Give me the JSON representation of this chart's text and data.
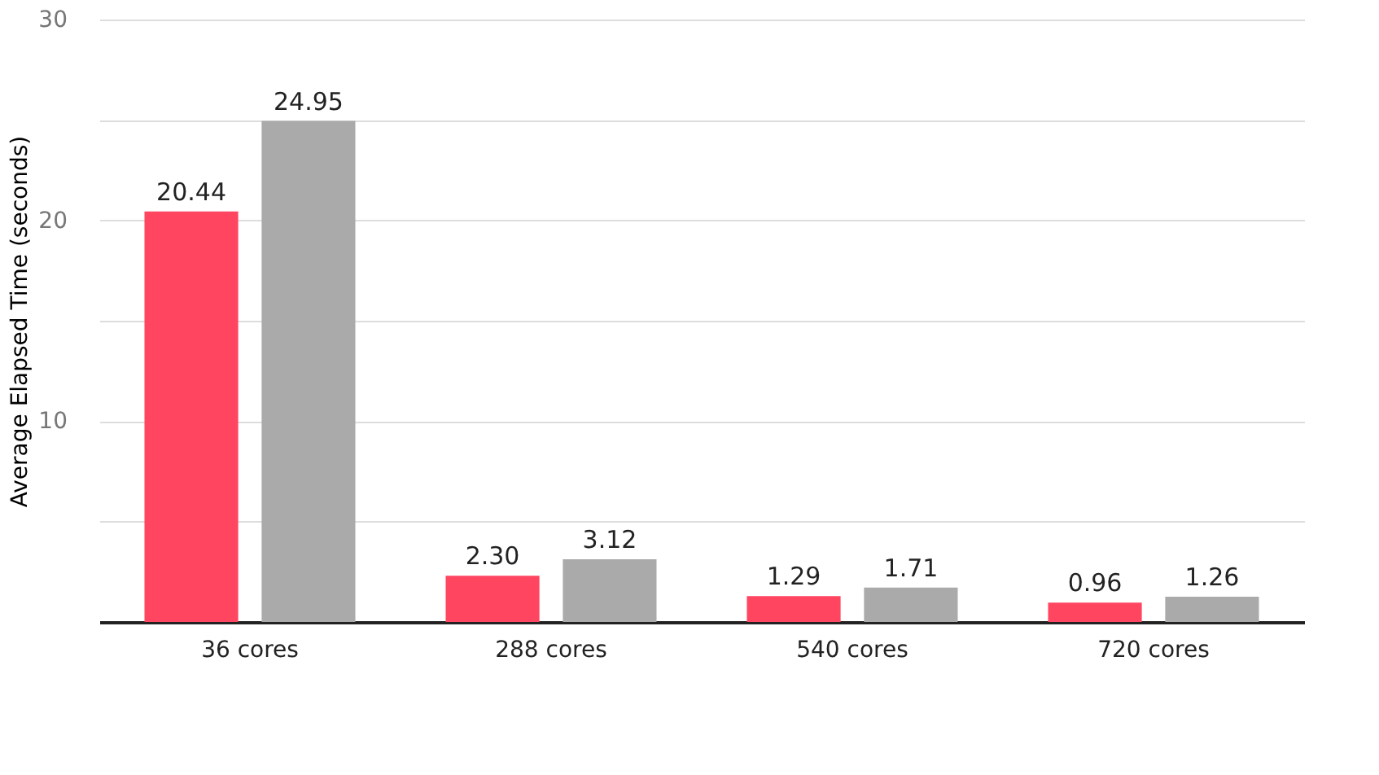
{
  "chart_data": {
    "type": "bar",
    "ylabel": "Average Elapsed Time (seconds)",
    "categories": [
      "36 cores",
      "288 cores",
      "540 cores",
      "720 cores"
    ],
    "series": [
      {
        "color": "#ff4560",
        "values": [
          20.44,
          2.3,
          1.29,
          0.96
        ],
        "value_labels": [
          "20.44",
          "2.30",
          "1.29",
          "0.96"
        ]
      },
      {
        "color": "#aaaaaa",
        "values": [
          24.95,
          3.12,
          1.71,
          1.26
        ],
        "value_labels": [
          "24.95",
          "3.12",
          "1.71",
          "1.26"
        ]
      }
    ],
    "ylim": [
      0,
      30
    ],
    "yticks": [
      {
        "value": 0,
        "label": null
      },
      {
        "value": 5,
        "label": null
      },
      10,
      {
        "value": 15,
        "label": null
      },
      20,
      {
        "value": 25,
        "label": null
      },
      30
    ],
    "grid": "y"
  }
}
